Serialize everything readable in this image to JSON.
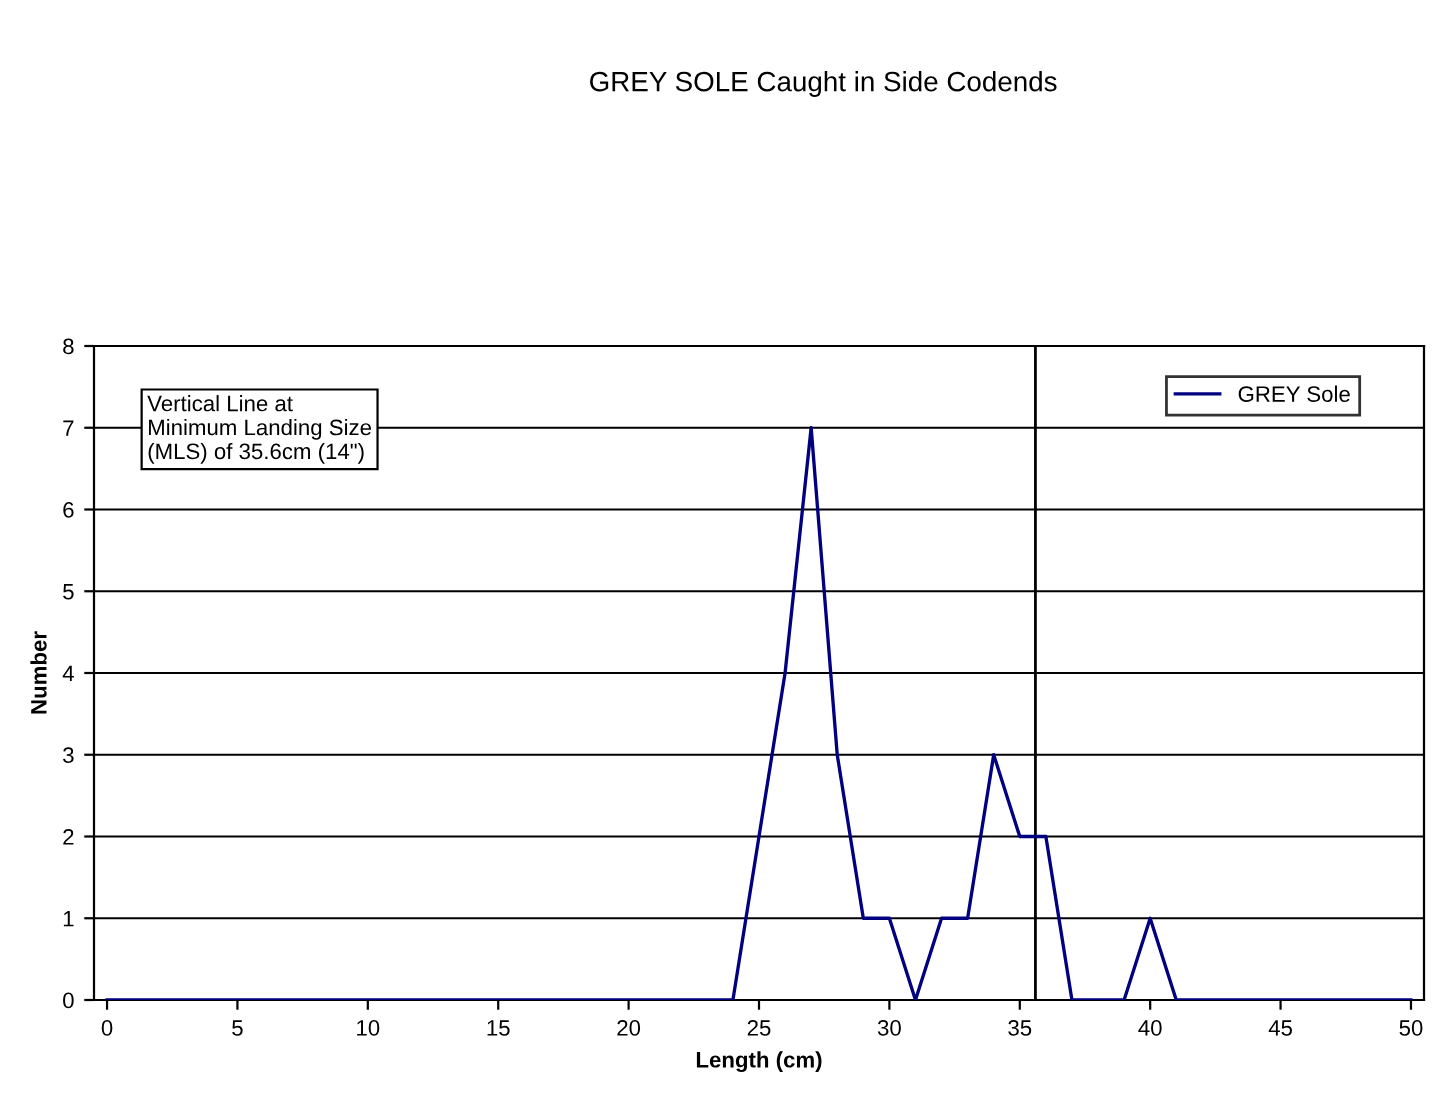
{
  "chart_data": {
    "type": "line",
    "title": "GREY SOLE Caught in Side Codends",
    "xlabel": "Length (cm)",
    "ylabel": "Number",
    "x": [
      0,
      1,
      2,
      3,
      4,
      5,
      6,
      7,
      8,
      9,
      10,
      11,
      12,
      13,
      14,
      15,
      16,
      17,
      18,
      19,
      20,
      21,
      22,
      23,
      24,
      25,
      26,
      27,
      28,
      29,
      30,
      31,
      32,
      33,
      34,
      35,
      36,
      37,
      38,
      39,
      40,
      41,
      42,
      43,
      44,
      45,
      46,
      47,
      48,
      49,
      50
    ],
    "series": [
      {
        "name": "GREY Sole",
        "color": "#000080",
        "values": [
          0,
          0,
          0,
          0,
          0,
          0,
          0,
          0,
          0,
          0,
          0,
          0,
          0,
          0,
          0,
          0,
          0,
          0,
          0,
          0,
          0,
          0,
          0,
          0,
          0,
          2,
          4,
          7,
          3,
          1,
          1,
          0,
          1,
          1,
          3,
          2,
          2,
          0,
          0,
          0,
          1,
          0,
          0,
          0,
          0,
          0,
          0,
          0,
          0,
          0,
          0
        ]
      }
    ],
    "xlim": [
      -0.5,
      50.5
    ],
    "xticks": [
      0,
      5,
      10,
      15,
      20,
      25,
      30,
      35,
      40,
      45,
      50
    ],
    "ylim": [
      0,
      8
    ],
    "yticks": [
      0,
      1,
      2,
      3,
      4,
      5,
      6,
      7,
      8
    ],
    "ref_lines": [
      {
        "axis": "x",
        "value": 35.6,
        "color": "#000000"
      }
    ],
    "annotations": [
      "Vertical Line at\nMinimum Landing Size\n(MLS) of 35.6cm (14\")"
    ],
    "grid": "y",
    "legend": "top right",
    "marker": "none",
    "line_style": "solid"
  }
}
